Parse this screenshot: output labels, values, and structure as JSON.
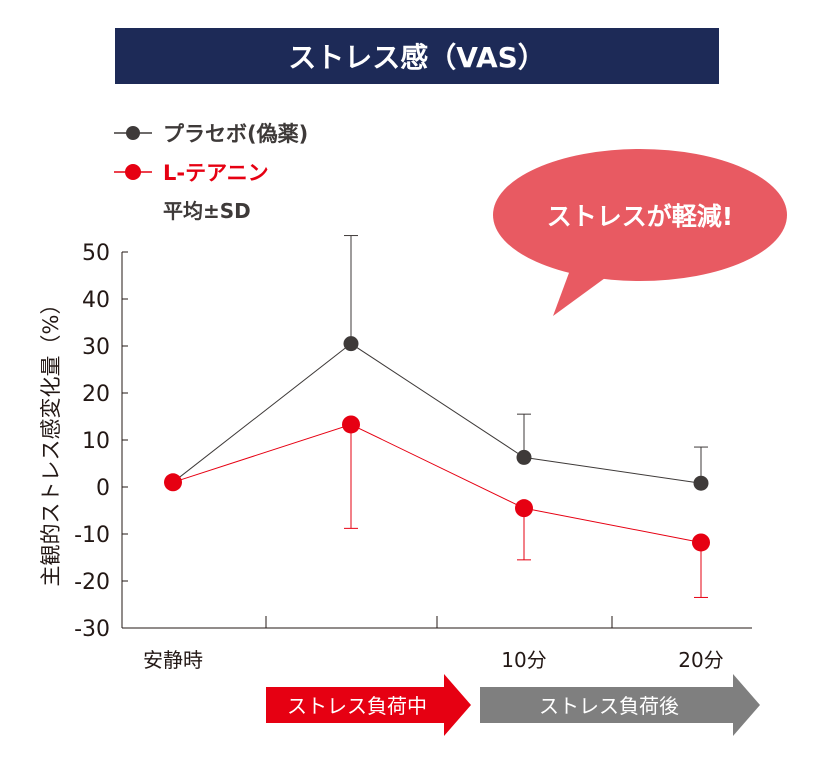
{
  "chart_data": {
    "type": "line",
    "title": "ストレス感（VAS）",
    "ylabel": "主観的ストレス感変化量（%）",
    "ylim": [
      -30,
      50
    ],
    "yticks": [
      50,
      40,
      30,
      20,
      10,
      0,
      -10,
      -20,
      -30
    ],
    "x_labels": [
      "安静時",
      "",
      "10分",
      "20分"
    ],
    "legend": {
      "items": [
        "プラセボ(偽薬)",
        "L-テアニン"
      ],
      "note": "平均±SD"
    },
    "series": [
      {
        "name": "プラセボ(偽薬)",
        "color": "#3e3a39",
        "values": [
          1,
          30.5,
          6.3,
          0.8
        ],
        "sd_upper": [
          null,
          53.5,
          15.5,
          8.5
        ],
        "sd_lower": [
          null,
          null,
          null,
          null
        ]
      },
      {
        "name": "L-テアニン",
        "color": "#e60012",
        "values": [
          1,
          13.3,
          -4.5,
          -11.8
        ],
        "sd_upper": [
          null,
          null,
          null,
          null
        ],
        "sd_lower": [
          null,
          -8.8,
          -15.5,
          -23.5
        ]
      }
    ],
    "callout": "ストレスが軽減!",
    "phases": [
      {
        "label": "ストレス負荷中",
        "color": "#e60012"
      },
      {
        "label": "ストレス負荷後",
        "color": "#7f7f7f"
      }
    ]
  }
}
